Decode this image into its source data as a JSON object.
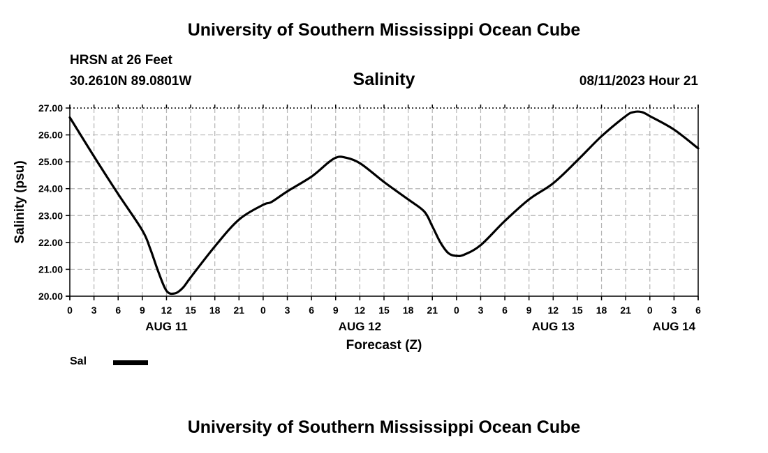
{
  "header": {
    "title": "University of Southern Mississippi Ocean Cube",
    "station": "HRSN at 26 Feet",
    "coords": "30.2610N  89.0801W",
    "datetime": "08/11/2023 Hour 21"
  },
  "footer": {
    "title": "University of Southern Mississippi Ocean Cube"
  },
  "legend": {
    "label": "Sal",
    "color": "#000000"
  },
  "chart_data": {
    "type": "line",
    "title": "Salinity",
    "xlabel": "Forecast (Z)",
    "ylabel": "Salinity (psu)",
    "ylim": [
      20,
      27
    ],
    "xlim": [
      0,
      78
    ],
    "yticks": [
      "20.00",
      "21.00",
      "22.00",
      "23.00",
      "24.00",
      "25.00",
      "26.00",
      "27.00"
    ],
    "xticks": [
      "0",
      "3",
      "6",
      "9",
      "12",
      "15",
      "18",
      "21",
      "0",
      "3",
      "6",
      "9",
      "12",
      "15",
      "18",
      "21",
      "0",
      "3",
      "6",
      "9",
      "12",
      "15",
      "18",
      "21",
      "0",
      "3",
      "6"
    ],
    "date_labels": [
      {
        "label": "AUG 11",
        "hour": 12
      },
      {
        "label": "AUG 12",
        "hour": 36
      },
      {
        "label": "AUG 13",
        "hour": 60
      },
      {
        "label": "AUG 14",
        "hour": 75
      }
    ],
    "grid": true,
    "series": [
      {
        "name": "Sal",
        "x": [
          0,
          3,
          6,
          9,
          10,
          11,
          12,
          13,
          14,
          15,
          18,
          21,
          24,
          25,
          27,
          30,
          32,
          33,
          34,
          36,
          39,
          42,
          44,
          45,
          46,
          47,
          48,
          49,
          51,
          54,
          57,
          60,
          63,
          66,
          69,
          70,
          71,
          72,
          75,
          78
        ],
        "y": [
          26.65,
          25.2,
          23.8,
          22.45,
          21.75,
          20.9,
          20.2,
          20.1,
          20.3,
          20.7,
          21.85,
          22.85,
          23.4,
          23.5,
          23.9,
          24.45,
          24.95,
          25.15,
          25.17,
          24.95,
          24.25,
          23.6,
          23.15,
          22.6,
          22.0,
          21.6,
          21.5,
          21.55,
          21.9,
          22.8,
          23.6,
          24.2,
          25.05,
          25.95,
          26.7,
          26.85,
          26.85,
          26.7,
          26.2,
          25.5
        ]
      }
    ]
  }
}
